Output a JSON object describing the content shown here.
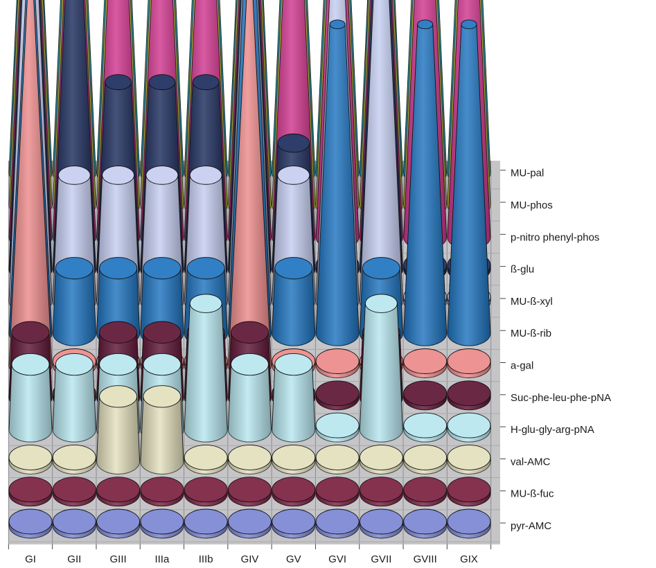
{
  "chart_data": {
    "type": "3d-cone-matrix",
    "groups": [
      "GI",
      "GII",
      "GIII",
      "IIIa",
      "IIIb",
      "GIV",
      "GV",
      "GVI",
      "GVII",
      "GVIII",
      "GIX"
    ],
    "substrates": [
      {
        "name": "pyr-AMC",
        "color": "#7b86d2"
      },
      {
        "name": "MU-ß-fuc",
        "color": "#7a2040"
      },
      {
        "name": "val-AMC",
        "color": "#e3dfbd"
      },
      {
        "name": "H-glu-gly-arg-pNA",
        "color": "#b7e6ef"
      },
      {
        "name": "Suc-phe-leu-phe-pNA",
        "color": "#5e1535"
      },
      {
        "name": "a-gal",
        "color": "#eb8a8a"
      },
      {
        "name": "MU-ß-rib",
        "color": "#1f74c0"
      },
      {
        "name": "MU-ß-xyl",
        "color": "#c5cdf0"
      },
      {
        "name": "ß-glu",
        "color": "#1c2c5c"
      },
      {
        "name": "p-nitro phenyl-phos",
        "color": "#d0368e"
      },
      {
        "name": "MU-phos",
        "color": "#f2ee50"
      },
      {
        "name": "MU-pal",
        "color": "#3fc7d8"
      }
    ],
    "values": [
      [
        0,
        0,
        0,
        1,
        1,
        7,
        7,
        6,
        6,
        6,
        6,
        5
      ],
      [
        0,
        0,
        0,
        1,
        0,
        0,
        1,
        2,
        5,
        5,
        5,
        5
      ],
      [
        0,
        0,
        1,
        1,
        1,
        0,
        1,
        2,
        3,
        5,
        5,
        5
      ],
      [
        0,
        0,
        1,
        1,
        1,
        0,
        1,
        2,
        3,
        5,
        5,
        5
      ],
      [
        0,
        0,
        0,
        2,
        1,
        0,
        1,
        2,
        3,
        5,
        5,
        5
      ],
      [
        0,
        0,
        0,
        1,
        1,
        7,
        6,
        6,
        6,
        6,
        6,
        5
      ],
      [
        0,
        0,
        0,
        1,
        0,
        0,
        1,
        2,
        2,
        4,
        4,
        5
      ],
      [
        0,
        0,
        0,
        0,
        0,
        0,
        5,
        5,
        0,
        4,
        5,
        5
      ],
      [
        0,
        0,
        0,
        2,
        1,
        0,
        1,
        5,
        6,
        6,
        6,
        5
      ],
      [
        0,
        0,
        0,
        0,
        0,
        0,
        5,
        0,
        0,
        5,
        5,
        5
      ],
      [
        0,
        0,
        0,
        0,
        0,
        0,
        5,
        0,
        0,
        4,
        4,
        4
      ]
    ]
  }
}
